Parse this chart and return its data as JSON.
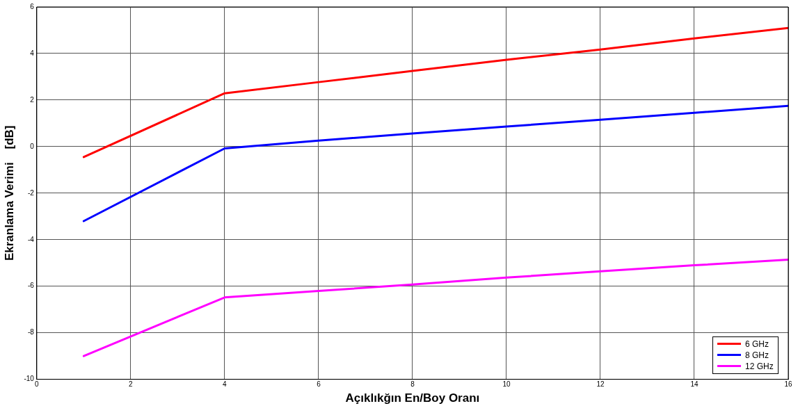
{
  "chart_data": {
    "type": "line",
    "xlabel": "Açıklıkğın En/Boy Oranı",
    "ylabel": "Ekranlama Verimi    [dB]",
    "x": [
      1,
      4,
      6,
      8,
      10,
      12,
      14,
      16
    ],
    "series": [
      {
        "name": "6 GHz",
        "color": "#ff0000",
        "values": [
          -0.45,
          2.29,
          2.77,
          3.25,
          3.73,
          4.17,
          4.65,
          5.1
        ]
      },
      {
        "name": "8 GHz",
        "color": "#0000ff",
        "values": [
          -3.2,
          -0.08,
          0.26,
          0.56,
          0.86,
          1.15,
          1.45,
          1.75
        ]
      },
      {
        "name": "12 GHz",
        "color": "#ff00ff",
        "values": [
          -9.0,
          -6.48,
          -6.2,
          -5.93,
          -5.63,
          -5.36,
          -5.1,
          -4.86
        ]
      }
    ],
    "xlim": [
      0,
      16
    ],
    "xticks": [
      0,
      2,
      4,
      6,
      8,
      10,
      12,
      14,
      16
    ],
    "ylim": [
      -10,
      6
    ],
    "yticks": [
      -10,
      -8,
      -6,
      -4,
      -2,
      0,
      2,
      4,
      6
    ],
    "grid": true,
    "legend": "bottom right",
    "marker": "none",
    "line_style": "solid"
  }
}
